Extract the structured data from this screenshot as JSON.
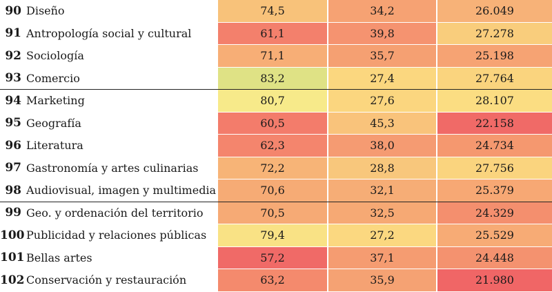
{
  "rows": [
    {
      "rank": "90",
      "name": "Diseño",
      "v1": "74,5",
      "v2": "34,2",
      "v3": "26.049",
      "c1": "#f8c27a",
      "c2": "#f6a273",
      "c3": "#f7b278",
      "sep": false
    },
    {
      "rank": "91",
      "name": "Antropología social y cultural",
      "v1": "61,1",
      "v2": "39,8",
      "v3": "27.278",
      "c1": "#f3806c",
      "c2": "#f59370",
      "c3": "#f9cd7c",
      "sep": false
    },
    {
      "rank": "92",
      "name": "Sociología",
      "v1": "71,1",
      "v2": "35,7",
      "v3": "25.198",
      "c1": "#f7ae76",
      "c2": "#f5a072",
      "c3": "#f6a373",
      "sep": false
    },
    {
      "rank": "93",
      "name": "Comercio",
      "v1": "83,2",
      "v2": "27,4",
      "v3": "27.764",
      "c1": "#dfe285",
      "c2": "#fbd77f",
      "c3": "#fad47e",
      "sep": true
    },
    {
      "rank": "94",
      "name": "Marketing",
      "v1": "80,7",
      "v2": "27,6",
      "v3": "28.107",
      "c1": "#f7ea8a",
      "c2": "#fbd67f",
      "c3": "#fbdd82",
      "sep": false
    },
    {
      "rank": "95",
      "name": "Geografía",
      "v1": "60,5",
      "v2": "45,3",
      "v3": "22.158",
      "c1": "#f37c6b",
      "c2": "#f9c37b",
      "c3": "#f06a67",
      "sep": false
    },
    {
      "rank": "96",
      "name": "Literatura",
      "v1": "62,3",
      "v2": "38,0",
      "v3": "24.734",
      "c1": "#f4856d",
      "c2": "#f59b72",
      "c3": "#f5986f",
      "sep": false
    },
    {
      "rank": "97",
      "name": "Gastronomía y artes culinarias",
      "v1": "72,2",
      "v2": "28,8",
      "v3": "27.756",
      "c1": "#f7b477",
      "c2": "#f8c77c",
      "c3": "#fad47e",
      "sep": false
    },
    {
      "rank": "98",
      "name": "Audiovisual, imagen y multimedia",
      "v1": "70,6",
      "v2": "32,1",
      "v3": "25.379",
      "c1": "#f6ab75",
      "c2": "#f6ad76",
      "c3": "#f7a874",
      "sep": true
    },
    {
      "rank": "99",
      "name": "Geo. y ordenación del territorio",
      "v1": "70,5",
      "v2": "32,5",
      "v3": "24.329",
      "c1": "#f6aa75",
      "c2": "#f6a974",
      "c3": "#f48f6e",
      "sep": false
    },
    {
      "rank": "100",
      "name": "Publicidad y relaciones públicas",
      "v1": "79,4",
      "v2": "27,2",
      "v3": "25.529",
      "c1": "#f9e285",
      "c2": "#fbd880",
      "c3": "#f7ab75",
      "sep": false
    },
    {
      "rank": "101",
      "name": "Bellas artes",
      "v1": "57,2",
      "v2": "37,1",
      "v3": "24.448",
      "c1": "#f06a67",
      "c2": "#f59c71",
      "c3": "#f4926f",
      "sep": false
    },
    {
      "rank": "102",
      "name": "Conservación y restauración",
      "v1": "63,2",
      "v2": "35,9",
      "v3": "21.980",
      "c1": "#f48a6d",
      "c2": "#f5a273",
      "c3": "#f06666",
      "sep": false
    }
  ]
}
